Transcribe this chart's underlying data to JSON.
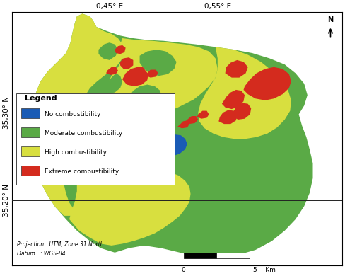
{
  "colors": {
    "no_combustibility": "#1a5bb5",
    "moderate_combustibility": "#5aaa46",
    "high_combustibility": "#d8df3f",
    "extreme_combustibility": "#d42b1e"
  },
  "legend_title": "Legend",
  "legend_items": [
    {
      "label": "No combustibility",
      "color": "#1a5bb5"
    },
    {
      "label": "Moderate combustibility",
      "color": "#5aaa46"
    },
    {
      "label": "High combustibility",
      "color": "#d8df3f"
    },
    {
      "label": "Extreme combustibility",
      "color": "#d42b1e"
    }
  ],
  "xticks": [
    0.45,
    0.55
  ],
  "xtick_labels": [
    "0,45° E",
    "0,55° E"
  ],
  "yticks": [
    35.2,
    35.3
  ],
  "ytick_labels": [
    "35,20° N",
    "35,30° N"
  ],
  "xlim": [
    0.36,
    0.665
  ],
  "ylim": [
    35.125,
    35.415
  ],
  "background_color": "#ffffff",
  "grid_color": "#222222",
  "grid_linewidth": 0.7,
  "projection_text": "Projection : UTM, Zone 31 North",
  "datum_text": "Datum   : WGS-84"
}
